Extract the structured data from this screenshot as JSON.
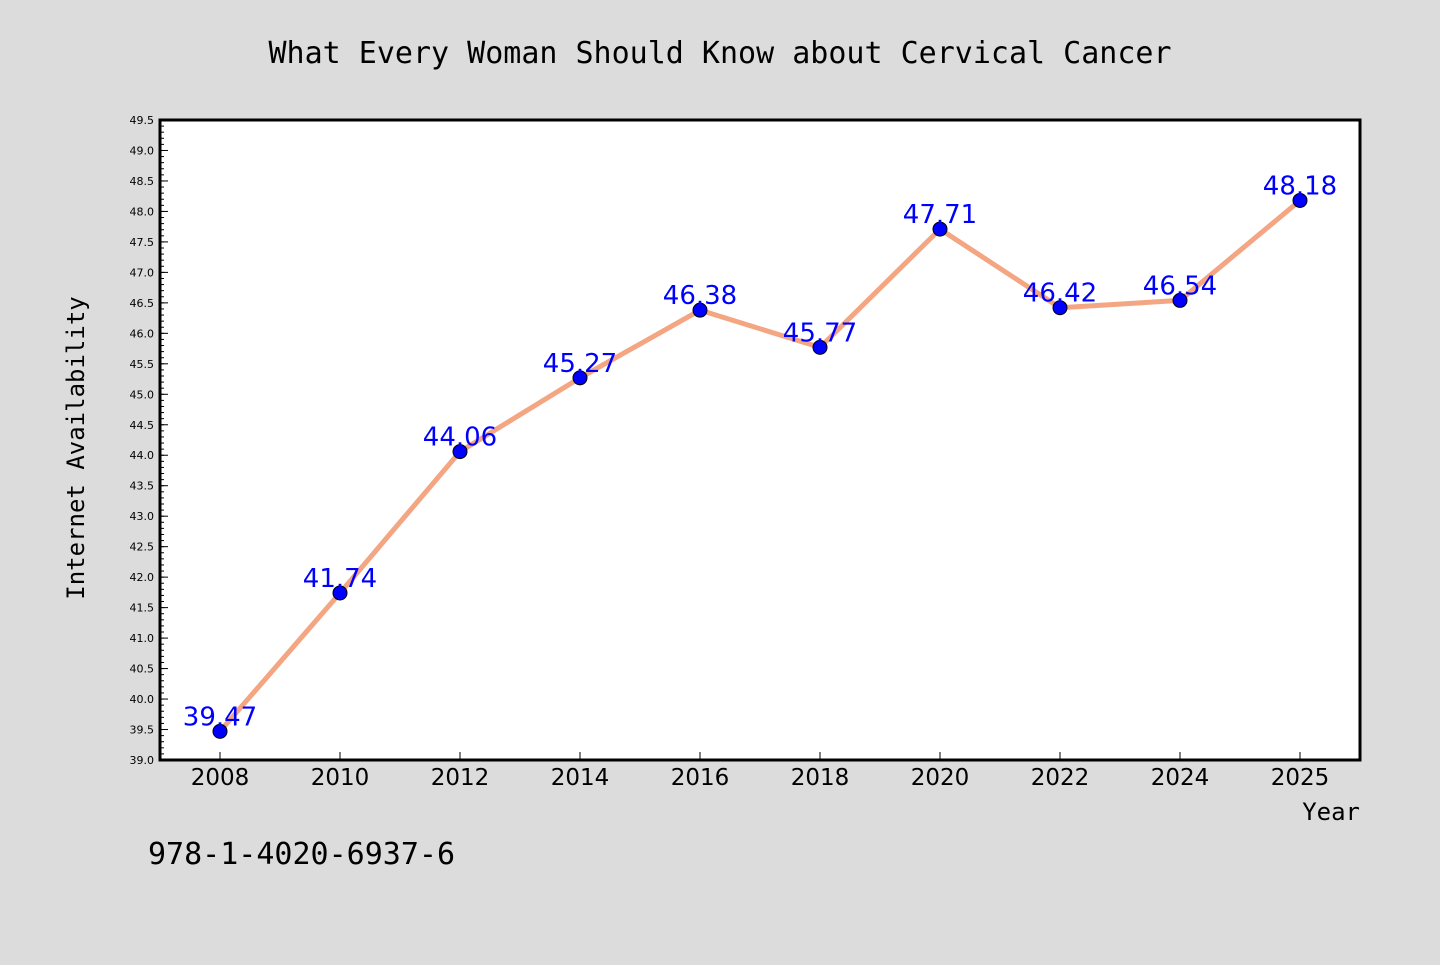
{
  "chart_data": {
    "type": "line",
    "title": "What Every Woman Should Know about Cervical Cancer",
    "xlabel": "Year",
    "ylabel": "Internet Availability",
    "categories": [
      "2008",
      "2010",
      "2012",
      "2014",
      "2016",
      "2018",
      "2020",
      "2022",
      "2024",
      "2025"
    ],
    "series": [
      {
        "values": [
          39.47,
          41.74,
          44.06,
          45.27,
          46.38,
          45.77,
          47.71,
          46.42,
          46.54,
          48.18
        ]
      }
    ],
    "data_labels": [
      "39.47",
      "41.74",
      "44.06",
      "45.27",
      "46.38",
      "45.77",
      "47.71",
      "46.42",
      "46.54",
      "48.18"
    ],
    "ylim": [
      39.0,
      49.5
    ],
    "y_ticks": [
      "39.0",
      "39.5",
      "40.0",
      "40.5",
      "41.0",
      "41.5",
      "42.0",
      "42.5",
      "43.0",
      "43.5",
      "44.0",
      "44.5",
      "45.0",
      "45.5",
      "46.0",
      "46.5",
      "47.0",
      "47.5",
      "48.0",
      "48.5",
      "49.0",
      "49.5"
    ],
    "grid": false,
    "legend": "none",
    "colors": {
      "line": "#f4a582",
      "marker": "#0000ff",
      "data_label": "#0000ff",
      "background": "#dcdcdc",
      "plot_background": "#ffffff"
    }
  },
  "footer_text": "978-1-4020-6937-6"
}
